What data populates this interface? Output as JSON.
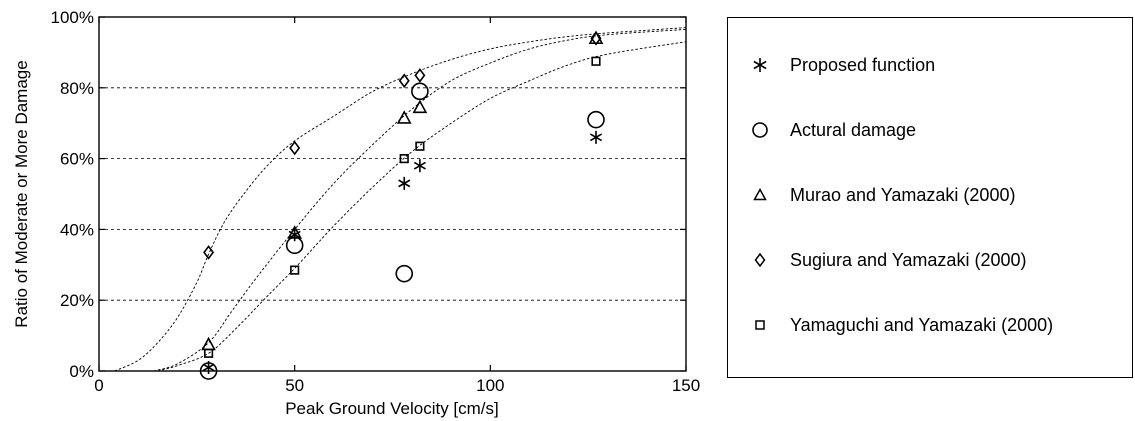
{
  "chart_data": {
    "type": "scatter",
    "title": "",
    "xlabel": "Peak Ground Velocity [cm/s]",
    "ylabel": "Ratio of Moderate or More Damage",
    "xlim": [
      0,
      150
    ],
    "ylim": [
      0,
      100
    ],
    "x_ticks": [
      "0",
      "50",
      "100",
      "150"
    ],
    "y_ticks": [
      "0%",
      "20%",
      "40%",
      "60%",
      "80%",
      "100%"
    ],
    "grid": "horizontal dashed",
    "legend_position": "right, outside plot",
    "series": [
      {
        "name": "Proposed function",
        "marker": "asterisk",
        "points": [
          [
            28,
            1
          ],
          [
            50,
            38.5
          ],
          [
            78,
            53
          ],
          [
            82,
            58
          ],
          [
            127,
            66
          ]
        ]
      },
      {
        "name": "Actural damage",
        "marker": "circle",
        "points": [
          [
            28,
            0
          ],
          [
            50,
            35.5
          ],
          [
            78,
            27.5
          ],
          [
            82,
            79
          ],
          [
            127,
            71
          ]
        ]
      },
      {
        "name": "Murao and Yamazaki (2000)",
        "marker": "triangle",
        "points": [
          [
            28,
            7.5
          ],
          [
            50,
            39
          ],
          [
            78,
            71.5
          ],
          [
            82,
            74.5
          ],
          [
            127,
            94
          ]
        ]
      },
      {
        "name": "Sugiura and Yamazaki (2000)",
        "marker": "diamond",
        "points": [
          [
            28,
            33.5
          ],
          [
            50,
            63
          ],
          [
            78,
            82
          ],
          [
            82,
            83.5
          ],
          [
            127,
            94
          ]
        ]
      },
      {
        "name": "Yamaguchi and Yamazaki (2000)",
        "marker": "square",
        "points": [
          [
            28,
            5
          ],
          [
            50,
            28.5
          ],
          [
            78,
            60
          ],
          [
            82,
            63.5
          ],
          [
            127,
            87.5
          ]
        ]
      }
    ],
    "fitted_curves": [
      {
        "series": "Sugiura and Yamazaki (2000)",
        "points": [
          [
            4,
            0
          ],
          [
            10,
            3
          ],
          [
            15,
            8
          ],
          [
            20,
            15
          ],
          [
            25,
            25
          ],
          [
            28,
            33
          ],
          [
            32,
            42
          ],
          [
            37,
            50
          ],
          [
            43,
            58
          ],
          [
            50,
            65
          ],
          [
            60,
            72
          ],
          [
            70,
            79
          ],
          [
            80,
            84
          ],
          [
            90,
            88
          ],
          [
            100,
            91
          ],
          [
            110,
            93
          ],
          [
            120,
            94.5
          ],
          [
            130,
            95.5
          ],
          [
            150,
            97
          ]
        ]
      },
      {
        "series": "Murao and Yamazaki (2000)",
        "points": [
          [
            14,
            0
          ],
          [
            20,
            2
          ],
          [
            28,
            8
          ],
          [
            34,
            17
          ],
          [
            40,
            26
          ],
          [
            50,
            40
          ],
          [
            60,
            53
          ],
          [
            70,
            64
          ],
          [
            80,
            74
          ],
          [
            90,
            82
          ],
          [
            100,
            87
          ],
          [
            110,
            91
          ],
          [
            120,
            93.5
          ],
          [
            130,
            95
          ],
          [
            150,
            96.5
          ]
        ]
      },
      {
        "series": "Yamaguchi and Yamazaki (2000)",
        "points": [
          [
            15,
            0
          ],
          [
            20,
            1.5
          ],
          [
            28,
            5
          ],
          [
            35,
            12
          ],
          [
            42,
            20
          ],
          [
            50,
            29
          ],
          [
            60,
            41
          ],
          [
            70,
            52
          ],
          [
            80,
            62
          ],
          [
            90,
            70
          ],
          [
            100,
            77
          ],
          [
            110,
            82
          ],
          [
            120,
            86.5
          ],
          [
            130,
            89.5
          ],
          [
            150,
            93
          ]
        ]
      }
    ]
  }
}
